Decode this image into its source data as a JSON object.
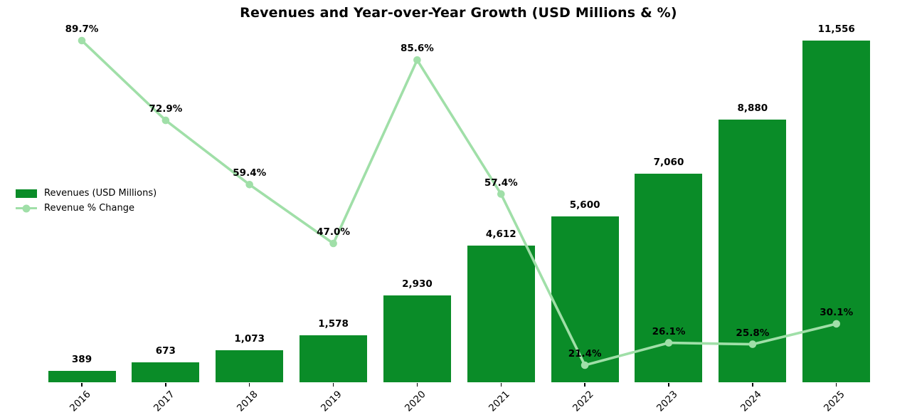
{
  "title": "Revenues and Year-over-Year Growth (USD Millions & %)",
  "colors": {
    "bar": "#0a8c28",
    "line": "#a0dfa8",
    "text": "#000000",
    "background": "#ffffff"
  },
  "chart_data": {
    "type": "bar",
    "subtype": "bar-line-combo",
    "title": "Revenues and Year-over-Year Growth (USD Millions & %)",
    "categories": [
      "2016",
      "2017",
      "2018",
      "2019",
      "2020",
      "2021",
      "2022",
      "2023",
      "2024",
      "2025"
    ],
    "series": [
      {
        "name": "Revenues (USD Millions)",
        "type": "bar",
        "color": "#0a8c28",
        "values": [
          389,
          673,
          1073,
          1578,
          2930,
          4612,
          5600,
          7060,
          8880,
          11556
        ],
        "labels": [
          "389",
          "673",
          "1,073",
          "1,578",
          "2,930",
          "4,612",
          "5,600",
          "7,060",
          "8,880",
          "11,556"
        ]
      },
      {
        "name": "Revenue % Change",
        "type": "line",
        "color": "#a0dfa8",
        "values": [
          89.7,
          72.9,
          59.4,
          47.0,
          85.6,
          57.4,
          21.4,
          26.1,
          25.8,
          30.1
        ],
        "labels": [
          "89.7%",
          "72.9%",
          "59.4%",
          "47.0%",
          "85.6%",
          "57.4%",
          "21.4%",
          "26.1%",
          "25.8%",
          "30.1%"
        ]
      }
    ],
    "bar_axis": {
      "min": 0,
      "max": 11556,
      "visible": false
    },
    "pct_axis": {
      "visible": false
    },
    "grid": false,
    "data_labels_shown": true,
    "legend_position": "center-left",
    "xlabel": "",
    "ylabel": ""
  }
}
